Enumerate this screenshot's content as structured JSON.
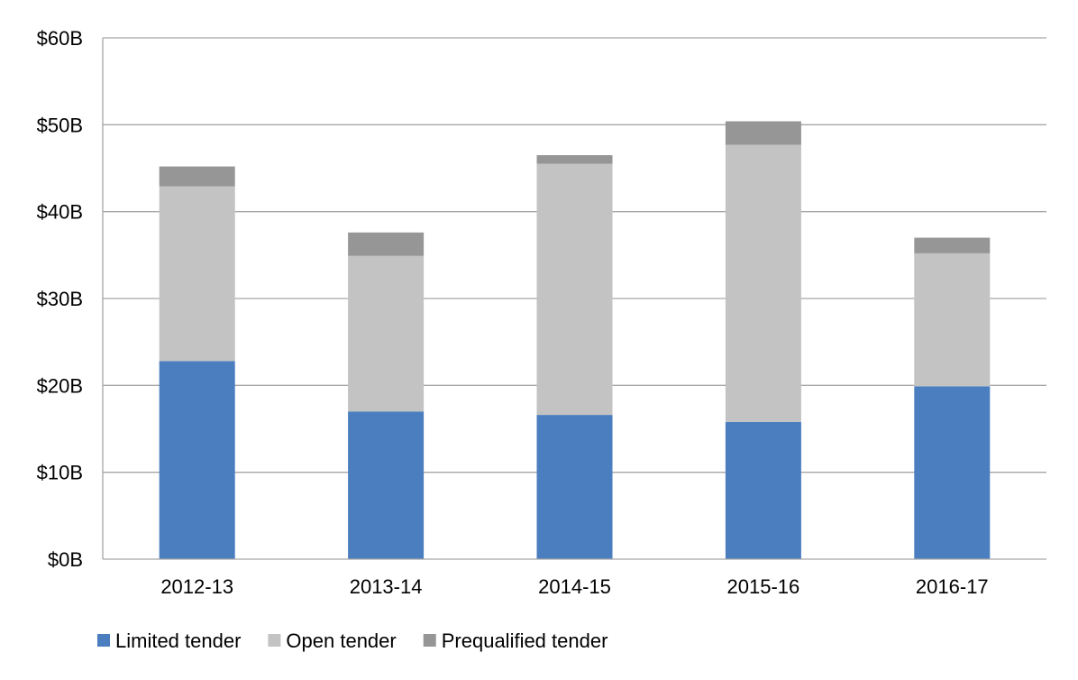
{
  "chart_data": {
    "type": "bar",
    "stacked": true,
    "categories": [
      "2012-13",
      "2013-14",
      "2014-15",
      "2015-16",
      "2016-17"
    ],
    "series": [
      {
        "name": "Limited tender",
        "color": "#4a7ebf",
        "values": [
          22.8,
          17.0,
          16.6,
          15.8,
          19.9
        ]
      },
      {
        "name": "Open tender",
        "color": "#c3c3c3",
        "values": [
          20.1,
          17.9,
          28.9,
          31.9,
          15.3
        ]
      },
      {
        "name": "Prequalified tender",
        "color": "#969696",
        "values": [
          2.3,
          2.7,
          1.0,
          2.7,
          1.8
        ]
      }
    ],
    "y_ticks": [
      "$0B",
      "$10B",
      "$20B",
      "$30B",
      "$40B",
      "$50B",
      "$60B"
    ],
    "ylim": [
      0,
      60
    ],
    "grid": true,
    "legend": "bottom-left",
    "title": "",
    "xlabel": "",
    "ylabel": ""
  }
}
